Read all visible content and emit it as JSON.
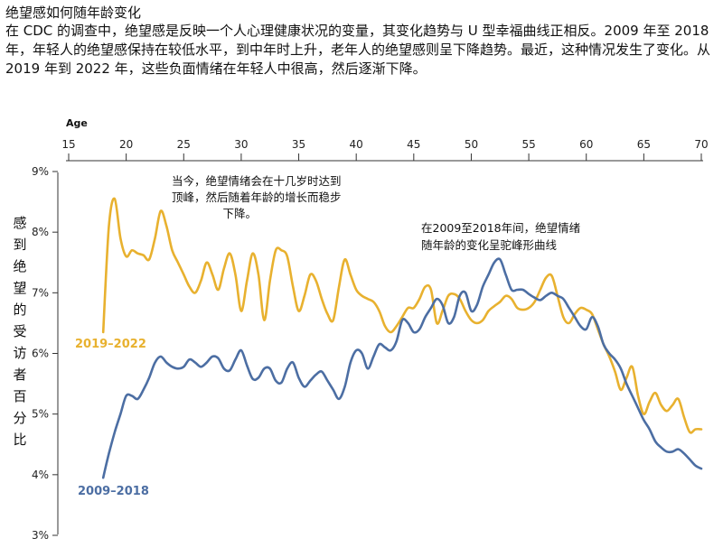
{
  "header": {
    "title": "绝望感如何随年龄变化",
    "description": "在 CDC 的调查中，绝望感是反映一个人心理健康状况的变量，其变化趋势与 U 型幸福曲线正相反。2009 年至 2018 年，年轻人的绝望感保持在较低水平，到中年时上升，老年人的绝望感则呈下降趋势。最近，这种情况发生了变化。从 2019 年到 2022 年，这些负面情绪在年轻人中很高，然后逐渐下降。"
  },
  "chart_data": {
    "type": "line",
    "xlabel": "Age",
    "ylabel": "感到绝望的受访者百分比",
    "xlim": [
      15,
      70
    ],
    "ylim": [
      3,
      9
    ],
    "x_ticks": [
      "15",
      "20",
      "25",
      "30",
      "35",
      "40",
      "45",
      "50",
      "55",
      "60",
      "65",
      "70"
    ],
    "y_ticks": [
      "3%",
      "4%",
      "5%",
      "6%",
      "7%",
      "8%",
      "9%"
    ],
    "grid": false,
    "series": [
      {
        "name": "2019–2022",
        "color": "#e8b12f",
        "points": [
          [
            18,
            6.35
          ],
          [
            18.5,
            8.1
          ],
          [
            19,
            8.55
          ],
          [
            19.5,
            7.9
          ],
          [
            20,
            7.6
          ],
          [
            20.5,
            7.7
          ],
          [
            21,
            7.65
          ],
          [
            21.5,
            7.62
          ],
          [
            22,
            7.55
          ],
          [
            22.5,
            7.9
          ],
          [
            23,
            8.35
          ],
          [
            23.5,
            8.1
          ],
          [
            24,
            7.7
          ],
          [
            24.5,
            7.5
          ],
          [
            25,
            7.3
          ],
          [
            25.5,
            7.1
          ],
          [
            26,
            7.0
          ],
          [
            26.5,
            7.2
          ],
          [
            27,
            7.5
          ],
          [
            27.5,
            7.3
          ],
          [
            28,
            7.05
          ],
          [
            28.5,
            7.4
          ],
          [
            29,
            7.65
          ],
          [
            29.5,
            7.3
          ],
          [
            30,
            6.7
          ],
          [
            30.5,
            7.2
          ],
          [
            31,
            7.65
          ],
          [
            31.5,
            7.3
          ],
          [
            32,
            6.55
          ],
          [
            32.5,
            7.2
          ],
          [
            33,
            7.7
          ],
          [
            33.5,
            7.7
          ],
          [
            34,
            7.6
          ],
          [
            34.5,
            7.1
          ],
          [
            35,
            6.7
          ],
          [
            35.5,
            6.95
          ],
          [
            36,
            7.3
          ],
          [
            36.5,
            7.2
          ],
          [
            37,
            6.9
          ],
          [
            37.5,
            6.65
          ],
          [
            38,
            6.55
          ],
          [
            38.5,
            7.1
          ],
          [
            39,
            7.55
          ],
          [
            39.5,
            7.3
          ],
          [
            40,
            7.05
          ],
          [
            40.5,
            6.95
          ],
          [
            41,
            6.9
          ],
          [
            41.5,
            6.85
          ],
          [
            42,
            6.7
          ],
          [
            42.5,
            6.45
          ],
          [
            43,
            6.35
          ],
          [
            43.5,
            6.45
          ],
          [
            44,
            6.6
          ],
          [
            44.5,
            6.75
          ],
          [
            45,
            6.75
          ],
          [
            45.5,
            6.9
          ],
          [
            46,
            7.1
          ],
          [
            46.5,
            7.05
          ],
          [
            47,
            6.5
          ],
          [
            47.5,
            6.7
          ],
          [
            48,
            6.95
          ],
          [
            48.5,
            6.98
          ],
          [
            49,
            6.9
          ],
          [
            49.5,
            6.7
          ],
          [
            50,
            6.55
          ],
          [
            50.5,
            6.5
          ],
          [
            51,
            6.55
          ],
          [
            51.5,
            6.7
          ],
          [
            52,
            6.78
          ],
          [
            52.5,
            6.85
          ],
          [
            53,
            6.95
          ],
          [
            53.5,
            6.9
          ],
          [
            54,
            6.75
          ],
          [
            54.5,
            6.72
          ],
          [
            55,
            6.75
          ],
          [
            55.5,
            6.85
          ],
          [
            56,
            7.05
          ],
          [
            56.5,
            7.25
          ],
          [
            57,
            7.28
          ],
          [
            57.5,
            6.95
          ],
          [
            58,
            6.6
          ],
          [
            58.5,
            6.5
          ],
          [
            59,
            6.65
          ],
          [
            59.5,
            6.75
          ],
          [
            60,
            6.72
          ],
          [
            60.5,
            6.65
          ],
          [
            61,
            6.4
          ],
          [
            61.5,
            6.15
          ],
          [
            62,
            5.95
          ],
          [
            62.5,
            5.7
          ],
          [
            63,
            5.4
          ],
          [
            63.5,
            5.6
          ],
          [
            64,
            5.78
          ],
          [
            64.5,
            5.3
          ],
          [
            65,
            5.0
          ],
          [
            65.5,
            5.2
          ],
          [
            66,
            5.35
          ],
          [
            66.5,
            5.15
          ],
          [
            67,
            5.05
          ],
          [
            67.5,
            5.15
          ],
          [
            68,
            5.25
          ],
          [
            68.5,
            4.95
          ],
          [
            69,
            4.7
          ],
          [
            69.5,
            4.75
          ],
          [
            70,
            4.75
          ]
        ]
      },
      {
        "name": "2009–2018",
        "color": "#4c6ea3",
        "points": [
          [
            18,
            3.95
          ],
          [
            18.5,
            4.35
          ],
          [
            19,
            4.7
          ],
          [
            19.5,
            5.0
          ],
          [
            20,
            5.3
          ],
          [
            20.5,
            5.3
          ],
          [
            21,
            5.25
          ],
          [
            21.5,
            5.4
          ],
          [
            22,
            5.6
          ],
          [
            22.5,
            5.85
          ],
          [
            23,
            5.95
          ],
          [
            23.5,
            5.85
          ],
          [
            24,
            5.78
          ],
          [
            24.5,
            5.75
          ],
          [
            25,
            5.78
          ],
          [
            25.5,
            5.9
          ],
          [
            26,
            5.85
          ],
          [
            26.5,
            5.78
          ],
          [
            27,
            5.85
          ],
          [
            27.5,
            5.95
          ],
          [
            28,
            5.92
          ],
          [
            28.5,
            5.75
          ],
          [
            29,
            5.72
          ],
          [
            29.5,
            5.9
          ],
          [
            30,
            6.05
          ],
          [
            30.5,
            5.8
          ],
          [
            31,
            5.58
          ],
          [
            31.5,
            5.6
          ],
          [
            32,
            5.75
          ],
          [
            32.5,
            5.75
          ],
          [
            33,
            5.55
          ],
          [
            33.5,
            5.52
          ],
          [
            34,
            5.75
          ],
          [
            34.5,
            5.85
          ],
          [
            35,
            5.6
          ],
          [
            35.5,
            5.45
          ],
          [
            36,
            5.55
          ],
          [
            36.5,
            5.65
          ],
          [
            37,
            5.7
          ],
          [
            37.5,
            5.55
          ],
          [
            38,
            5.4
          ],
          [
            38.5,
            5.25
          ],
          [
            39,
            5.45
          ],
          [
            39.5,
            5.85
          ],
          [
            40,
            6.05
          ],
          [
            40.5,
            6.0
          ],
          [
            41,
            5.75
          ],
          [
            41.5,
            5.95
          ],
          [
            42,
            6.15
          ],
          [
            42.5,
            6.1
          ],
          [
            43,
            6.05
          ],
          [
            43.5,
            6.2
          ],
          [
            44,
            6.55
          ],
          [
            44.5,
            6.5
          ],
          [
            45,
            6.35
          ],
          [
            45.5,
            6.4
          ],
          [
            46,
            6.6
          ],
          [
            46.5,
            6.75
          ],
          [
            47,
            6.9
          ],
          [
            47.5,
            6.8
          ],
          [
            48,
            6.5
          ],
          [
            48.5,
            6.6
          ],
          [
            49,
            6.95
          ],
          [
            49.5,
            7.0
          ],
          [
            50,
            6.7
          ],
          [
            50.5,
            6.8
          ],
          [
            51,
            7.1
          ],
          [
            51.5,
            7.3
          ],
          [
            52,
            7.5
          ],
          [
            52.5,
            7.55
          ],
          [
            53,
            7.3
          ],
          [
            53.5,
            7.05
          ],
          [
            54,
            7.05
          ],
          [
            54.5,
            7.05
          ],
          [
            55,
            6.98
          ],
          [
            55.5,
            6.92
          ],
          [
            56,
            6.88
          ],
          [
            56.5,
            6.95
          ],
          [
            57,
            7.0
          ],
          [
            57.5,
            6.95
          ],
          [
            58,
            6.9
          ],
          [
            58.5,
            6.75
          ],
          [
            59,
            6.6
          ],
          [
            59.5,
            6.45
          ],
          [
            60,
            6.4
          ],
          [
            60.5,
            6.6
          ],
          [
            61,
            6.45
          ],
          [
            61.5,
            6.15
          ],
          [
            62,
            6.0
          ],
          [
            62.5,
            5.9
          ],
          [
            63,
            5.75
          ],
          [
            63.5,
            5.5
          ],
          [
            64,
            5.3
          ],
          [
            64.5,
            5.1
          ],
          [
            65,
            4.9
          ],
          [
            65.5,
            4.75
          ],
          [
            66,
            4.55
          ],
          [
            66.5,
            4.45
          ],
          [
            67,
            4.38
          ],
          [
            67.5,
            4.38
          ],
          [
            68,
            4.42
          ],
          [
            68.5,
            4.35
          ],
          [
            69,
            4.25
          ],
          [
            69.5,
            4.15
          ],
          [
            70,
            4.1
          ]
        ]
      }
    ],
    "annotations": [
      {
        "lines": [
          "当今，绝望情绪会在十几岁时达到",
          "顶峰，然后随着年龄的增长而稳步",
          "下降。"
        ],
        "align": [
          "start",
          "start",
          "end"
        ]
      },
      {
        "lines": [
          "在2009至2018年间，绝望情绪",
          "随年龄的变化呈驼峰形曲线"
        ],
        "align": [
          "start",
          "start"
        ]
      }
    ]
  }
}
